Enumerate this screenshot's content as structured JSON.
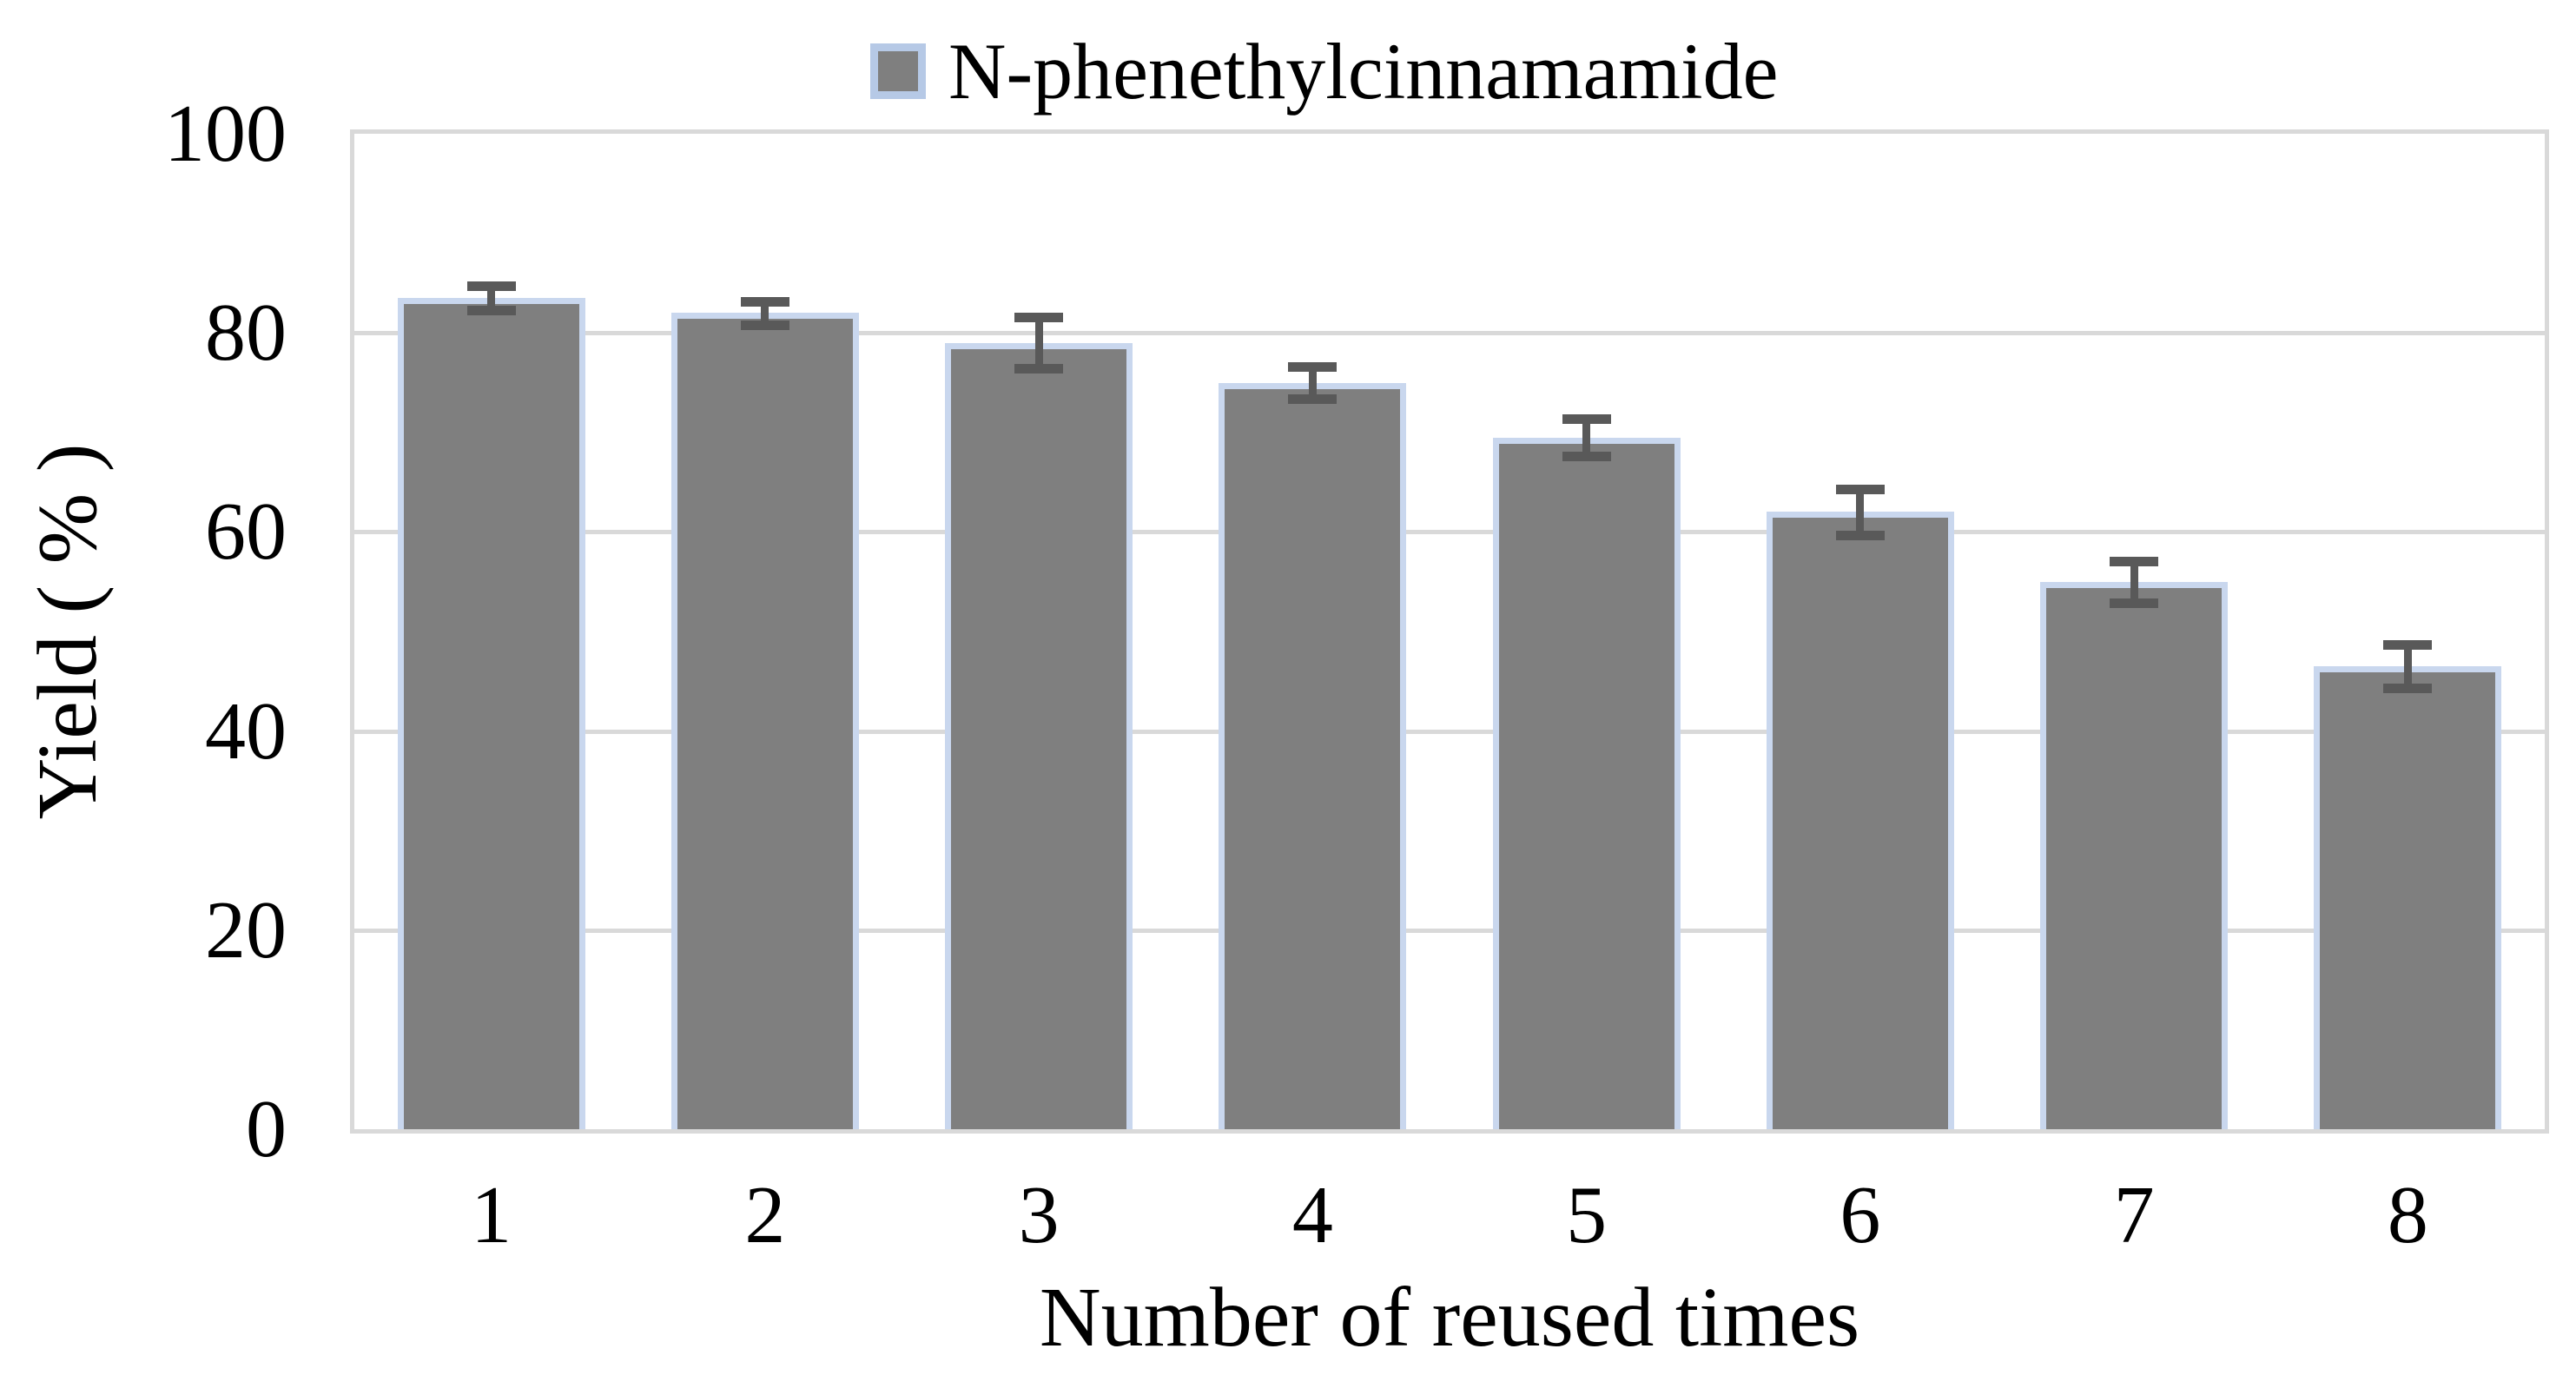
{
  "legend": {
    "label": "N-phenethylcinnamamide",
    "marker_color": "#7f7f7f",
    "marker_border_color": "#b6c9e6"
  },
  "chart_data": {
    "type": "bar",
    "title": "",
    "categories": [
      "1",
      "2",
      "3",
      "4",
      "5",
      "6",
      "7",
      "8"
    ],
    "series": [
      {
        "name": "N-phenethylcinnamamide",
        "values": [
          83.5,
          82,
          79,
          75,
          69.5,
          62,
          55,
          46.5
        ],
        "error_bars": [
          1.2,
          1.2,
          2.6,
          1.6,
          1.9,
          2.3,
          2.1,
          2.2
        ]
      }
    ],
    "xlabel": "Number of reused times",
    "ylabel": "Yield ( % )",
    "ylim": [
      0,
      100
    ],
    "yticks": [
      0,
      20,
      40,
      60,
      80,
      100
    ],
    "grid": "horizontal",
    "legend_position": "top-center",
    "bar_color": "#7f7f7f",
    "bar_border_color": "#c9d7ee",
    "error_bar_color": "#595959",
    "grid_color": "#d9d9d9",
    "plot_border_color": "#d9d9d9"
  }
}
